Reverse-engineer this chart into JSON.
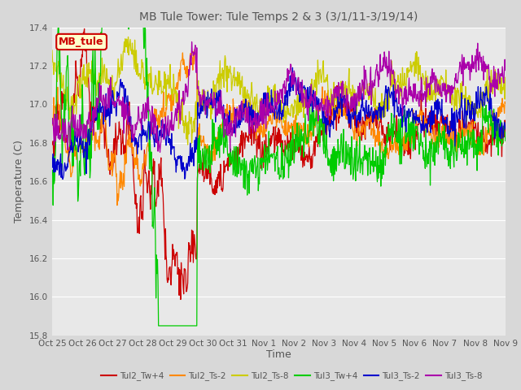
{
  "title": "MB Tule Tower: Tule Temps 2 & 3 (3/1/11-3/19/14)",
  "xlabel": "Time",
  "ylabel": "Temperature (C)",
  "ylim": [
    15.8,
    17.4
  ],
  "yticks": [
    15.8,
    16.0,
    16.2,
    16.4,
    16.6,
    16.8,
    17.0,
    17.2,
    17.4
  ],
  "xtick_labels": [
    "Oct 25",
    "Oct 26",
    "Oct 27",
    "Oct 28",
    "Oct 29",
    "Oct 30",
    "Oct 31",
    "Nov 1",
    "Nov 2",
    "Nov 3",
    "Nov 4",
    "Nov 5",
    "Nov 6",
    "Nov 7",
    "Nov 8",
    "Nov 9"
  ],
  "legend_label": "MB_tule",
  "series_colors": {
    "Tul2_Tw+4": "#cc0000",
    "Tul2_Ts-2": "#ff8800",
    "Tul2_Ts-8": "#cccc00",
    "Tul3_Tw+4": "#00cc00",
    "Tul3_Ts-2": "#0000cc",
    "Tul3_Ts-8": "#aa00aa"
  },
  "background_color": "#d8d8d8",
  "plot_bg_color": "#e8e8e8",
  "grid_color": "#ffffff",
  "title_color": "#555555",
  "label_color": "#555555",
  "tick_color": "#555555"
}
